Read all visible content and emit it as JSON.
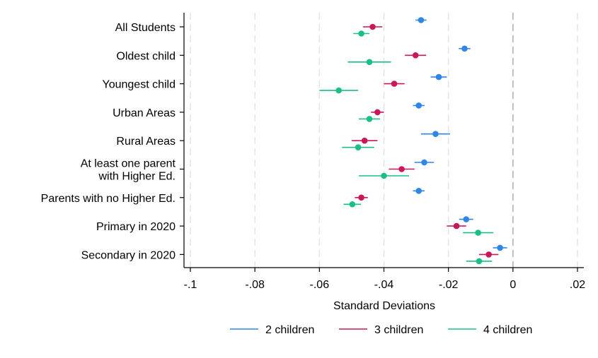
{
  "chart_data": {
    "type": "scatter",
    "xlabel": "Standard Deviations",
    "xlim": [
      -0.1,
      0.02
    ],
    "xticks": [
      {
        "value": -0.1,
        "label": "-.1"
      },
      {
        "value": -0.08,
        "label": "-.08"
      },
      {
        "value": -0.06,
        "label": "-.06"
      },
      {
        "value": -0.04,
        "label": "-.04"
      },
      {
        "value": -0.02,
        "label": "-.02"
      },
      {
        "value": 0,
        "label": "0"
      },
      {
        "value": 0.02,
        "label": ".02"
      }
    ],
    "reference_line_x": 0,
    "grid": true,
    "legend_position": "bottom",
    "categories": [
      [
        "All Students"
      ],
      [
        "Oldest child"
      ],
      [
        "Youngest child"
      ],
      [
        "Urban Areas"
      ],
      [
        "Rural Areas"
      ],
      [
        "At least one parent",
        "with Higher Ed."
      ],
      [
        "Parents with no Higher Ed."
      ],
      [
        "Primary in 2020"
      ],
      [
        "Secondary in 2020"
      ]
    ],
    "series": [
      {
        "name": "2 children",
        "color": "#2e86e6",
        "values": [
          -0.0285,
          -0.015,
          -0.023,
          -0.0292,
          -0.024,
          -0.0275,
          -0.0292,
          -0.0145,
          -0.004
        ],
        "ci_low": [
          -0.0302,
          -0.0168,
          -0.0255,
          -0.031,
          -0.0285,
          -0.0305,
          -0.031,
          -0.0167,
          -0.0062
        ],
        "ci_high": [
          -0.0268,
          -0.0132,
          -0.0205,
          -0.0274,
          -0.0195,
          -0.0245,
          -0.0274,
          -0.0123,
          -0.0018
        ]
      },
      {
        "name": "3 children",
        "color": "#c8185a",
        "values": [
          -0.0435,
          -0.0302,
          -0.0368,
          -0.042,
          -0.046,
          -0.0345,
          -0.047,
          -0.0175,
          -0.0075
        ],
        "ci_low": [
          -0.0465,
          -0.0335,
          -0.04,
          -0.044,
          -0.05,
          -0.0385,
          -0.049,
          -0.0205,
          -0.0105
        ],
        "ci_high": [
          -0.0405,
          -0.0269,
          -0.0336,
          -0.04,
          -0.042,
          -0.0305,
          -0.045,
          -0.0145,
          -0.0045
        ]
      },
      {
        "name": "4 children",
        "color": "#1bbd88",
        "values": [
          -0.047,
          -0.0445,
          -0.054,
          -0.0445,
          -0.048,
          -0.04,
          -0.0498,
          -0.0108,
          -0.0105
        ],
        "ci_low": [
          -0.0495,
          -0.0512,
          -0.06,
          -0.0478,
          -0.053,
          -0.0478,
          -0.0525,
          -0.0155,
          -0.0145
        ],
        "ci_high": [
          -0.0445,
          -0.0378,
          -0.048,
          -0.0412,
          -0.043,
          -0.0322,
          -0.0471,
          -0.0061,
          -0.0065
        ]
      }
    ]
  }
}
